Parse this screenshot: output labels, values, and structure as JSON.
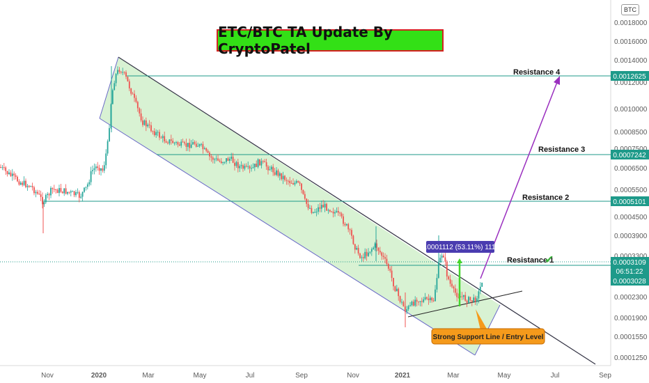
{
  "title": "ETC/BTC TA Update By CryptoPatel",
  "unit": "BTC",
  "colors": {
    "up": "#26a69a",
    "down": "#ef5350",
    "channel_fill": "#c8ecc0",
    "channel_line": "#6a6ac8",
    "resistance": "#1e9a8a",
    "projection": "#9a2fbf",
    "tag_bg": "#1e9a8a",
    "measure_tag": "#4a3cb0",
    "title_bg": "#33e016",
    "title_border": "#d42121",
    "callout_bg": "#f59a1b"
  },
  "chart_data": {
    "type": "candlestick",
    "x_ticks": [
      "Nov",
      "2020",
      "Mar",
      "May",
      "Jul",
      "Sep",
      "Nov",
      "2021",
      "Mar",
      "May",
      "Jul",
      "Sep"
    ],
    "y_ticks": [
      "0.0018000",
      "0.0016000",
      "0.0014000",
      "0.0012000",
      "0.0010000",
      "0.0008500",
      "0.0007500",
      "0.0006500",
      "0.0005500",
      "0.0004500",
      "0.0003900",
      "0.0003300",
      "0.0002300",
      "0.0001900",
      "0.0001550",
      "0.0001250"
    ],
    "resistance_levels": [
      {
        "name": "Resistance 4",
        "value": "0.0012625"
      },
      {
        "name": "Resistance 3",
        "value": "0.0007242"
      },
      {
        "name": "Resistance 2",
        "value": "0.0005101"
      },
      {
        "name": "Resistance 1",
        "value": "0.0003028"
      }
    ],
    "current_price": "0.0003109",
    "countdown": "06:51:22",
    "measurement_label": "0.0001112 (53.11%) 1112",
    "support_callout": "Strong Support Line / Entry Level",
    "checkmark": "✔"
  }
}
